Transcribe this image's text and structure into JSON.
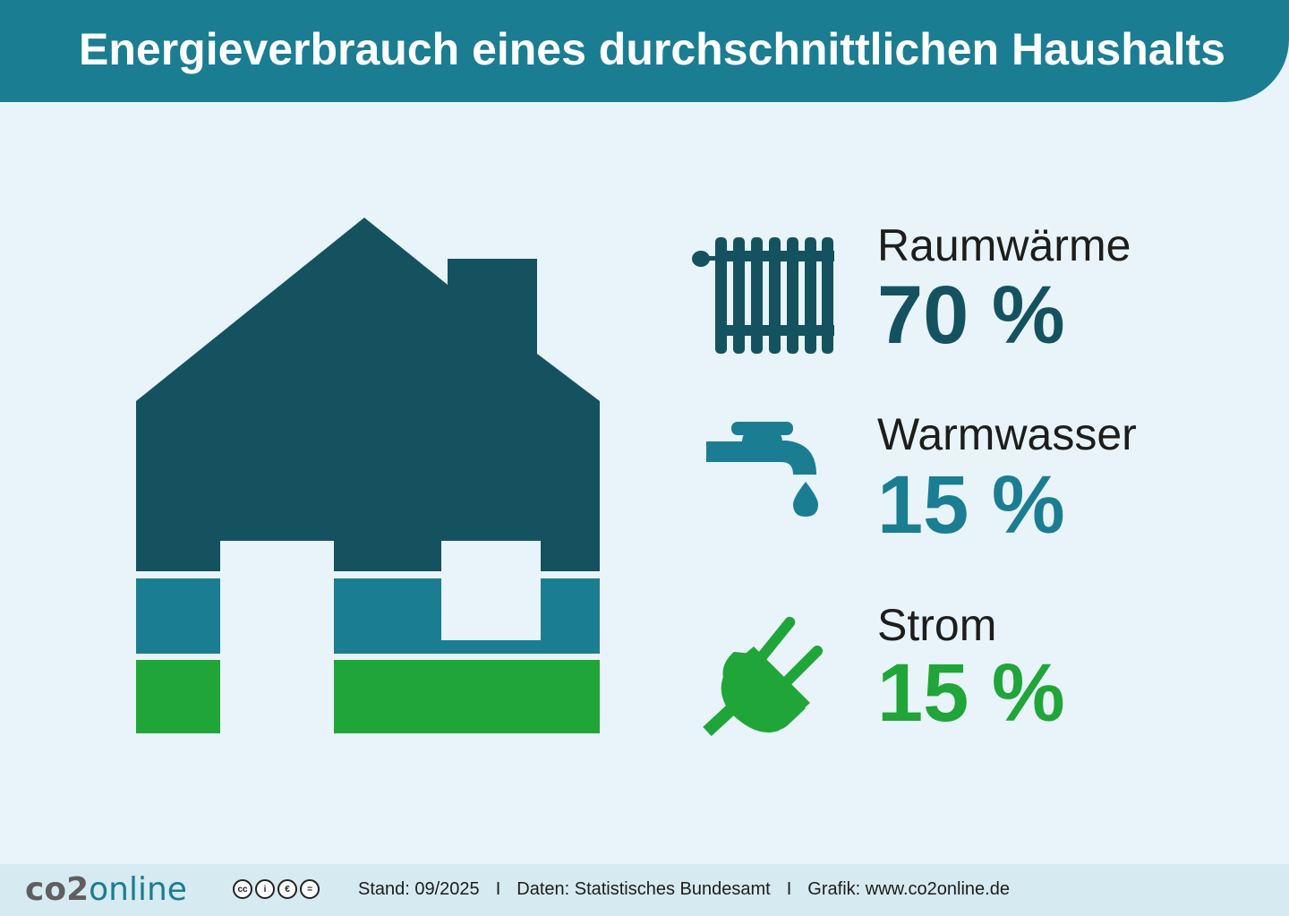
{
  "title": "Energieverbrauch eines durchschnittlichen Haushalts",
  "colors": {
    "header": "#1b7d92",
    "raumwaerme": "#15525f",
    "warmwasser": "#1b7d92",
    "strom": "#20a538",
    "background": "#e8f4f9"
  },
  "chart_data": {
    "type": "pie",
    "categories": [
      "Raumwärme",
      "Warmwasser",
      "Strom"
    ],
    "values": [
      70,
      15,
      15
    ],
    "unit": "%",
    "labels": [
      "70 %",
      "15 %",
      "15 %"
    ],
    "icons": [
      "radiator-icon",
      "water-tap-icon",
      "power-plug-icon"
    ]
  },
  "footer": {
    "logo_a": "co2",
    "logo_b": "online",
    "license_icons": [
      "cc",
      "by",
      "nc",
      "nd"
    ],
    "license_glyphs": [
      "cc",
      "i",
      "€",
      "="
    ],
    "stand": "Stand: 09/2025",
    "daten": "Daten: Statistisches Bundesamt",
    "grafik": "Grafik: www.co2online.de",
    "separator": "I"
  }
}
